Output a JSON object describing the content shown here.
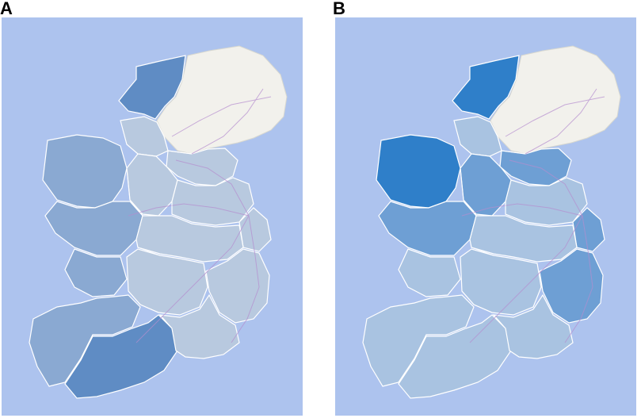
{
  "panels": [
    {
      "label": "A",
      "colors": {
        "sea": "#adc3ee",
        "ni": "#f2f1ec",
        "regions": [
          "#5f8cc4",
          "#8aa9d2",
          "#b8c9df"
        ]
      }
    },
    {
      "label": "B",
      "colors": {
        "sea": "#adc3ee",
        "ni": "#f2f1ec",
        "regions": [
          "#2f7fc9",
          "#6e9fd4",
          "#a9c3e1"
        ]
      }
    }
  ]
}
